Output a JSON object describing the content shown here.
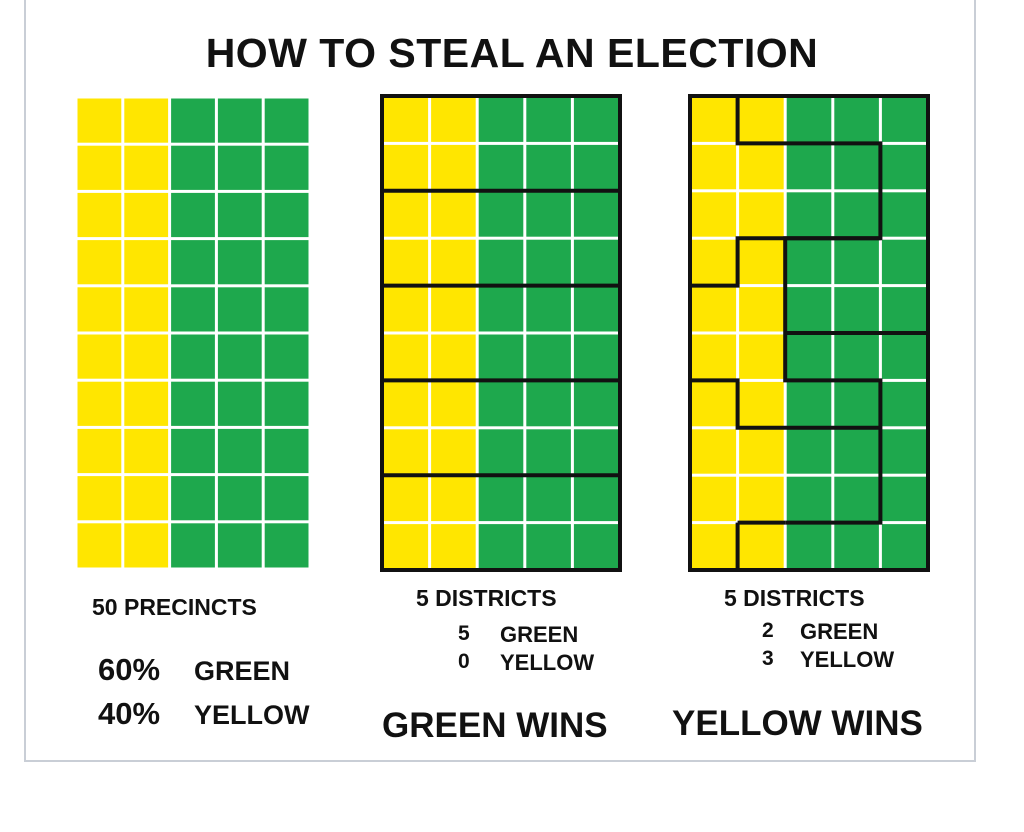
{
  "title": "HOW TO STEAL AN ELECTION",
  "colors": {
    "yellow": "#ffe600",
    "green": "#1ea84d",
    "line": "#111111",
    "gap": "#ffffff"
  },
  "grid": {
    "rows": 10,
    "cols": 5,
    "cells": "columns 1-2 yellow, columns 3-5 green"
  },
  "panel1": {
    "caption": "50 PRECINCTS",
    "stat1_pct": "60%",
    "stat1_label": "GREEN",
    "stat2_pct": "40%",
    "stat2_label": "YELLOW"
  },
  "panel2": {
    "caption": "5 DISTRICTS",
    "green_count": "5",
    "green_label": "GREEN",
    "yellow_count": "0",
    "yellow_label": "YELLOW",
    "result": "GREEN WINS"
  },
  "panel3": {
    "caption": "5 DISTRICTS",
    "green_count": "2",
    "green_label": "GREEN",
    "yellow_count": "3",
    "yellow_label": "YELLOW",
    "result": "YELLOW WINS"
  }
}
